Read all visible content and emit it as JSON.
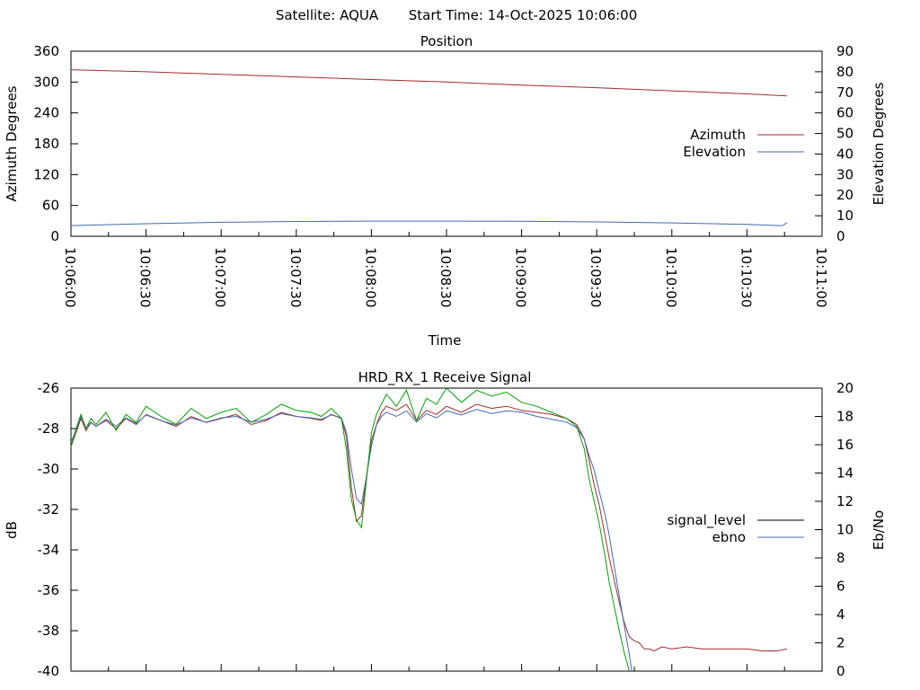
{
  "header": {
    "satellite_label": "Satellite: AQUA",
    "start_time_label": "Start Time: 14-Oct-2025 10:06:00"
  },
  "colors": {
    "azimuth": "#a52a2a",
    "elevation": "#4169b4",
    "signal_level": "#a52a2a",
    "ebno": "#4169b4",
    "signal_green": "#00a000",
    "axis": "#000000"
  },
  "chart_data": [
    {
      "type": "line",
      "title": "Position",
      "xlabel": "Time",
      "ylabel": "Azimuth Degrees",
      "y2label": "Elevation Degrees",
      "x_ticks": [
        "10:06:00",
        "10:06:30",
        "10:07:00",
        "10:07:30",
        "10:08:00",
        "10:08:30",
        "10:09:00",
        "10:09:30",
        "10:10:00",
        "10:10:30",
        "10:11:00"
      ],
      "x_range_seconds": [
        0,
        300
      ],
      "ylim": [
        0,
        360
      ],
      "y_ticks": [
        "0",
        "60",
        "120",
        "180",
        "240",
        "300",
        "360"
      ],
      "y2lim": [
        0,
        90
      ],
      "y2_ticks": [
        "0",
        "10",
        "20",
        "30",
        "40",
        "50",
        "60",
        "70",
        "80",
        "90"
      ],
      "legend_position": "right",
      "series": [
        {
          "name": "Azimuth",
          "axis": "left",
          "x": [
            0,
            30,
            60,
            90,
            120,
            150,
            180,
            210,
            240,
            270,
            286
          ],
          "y": [
            324,
            320,
            315,
            310,
            305,
            300,
            294,
            289,
            283,
            277,
            273
          ]
        },
        {
          "name": "Elevation",
          "axis": "right",
          "x": [
            0,
            30,
            60,
            90,
            120,
            150,
            180,
            210,
            240,
            270,
            284,
            286
          ],
          "y": [
            5.2,
            6.1,
            6.8,
            7.2,
            7.4,
            7.4,
            7.3,
            7.0,
            6.5,
            5.8,
            5.1,
            6.6
          ]
        }
      ]
    },
    {
      "type": "line",
      "title": "HRD_RX_1 Receive Signal",
      "ylabel": "dB",
      "y2label": "Eb/No",
      "x_range_seconds": [
        0,
        300
      ],
      "ylim": [
        -40,
        -26
      ],
      "y_ticks": [
        "-40",
        "-38",
        "-36",
        "-34",
        "-32",
        "-30",
        "-28",
        "-26"
      ],
      "y2lim": [
        0,
        20
      ],
      "y2_ticks": [
        "0",
        "2",
        "4",
        "6",
        "8",
        "10",
        "12",
        "14",
        "16",
        "18",
        "20"
      ],
      "legend_position": "right",
      "series": [
        {
          "name": "signal_level",
          "axis": "left",
          "x": [
            0,
            2,
            4,
            6,
            8,
            10,
            14,
            18,
            22,
            26,
            30,
            36,
            42,
            48,
            54,
            60,
            66,
            72,
            78,
            84,
            90,
            96,
            100,
            104,
            108,
            110,
            112,
            114,
            116,
            118,
            120,
            122,
            124,
            126,
            130,
            134,
            138,
            142,
            146,
            150,
            156,
            162,
            168,
            174,
            180,
            186,
            192,
            198,
            202,
            205,
            207,
            209,
            211,
            213,
            215,
            217,
            219,
            221,
            223,
            225,
            227,
            229,
            231,
            233,
            236,
            240,
            246,
            252,
            258,
            264,
            270,
            276,
            282,
            286
          ],
          "y": [
            -28.9,
            -28.2,
            -27.5,
            -28.1,
            -27.7,
            -27.9,
            -27.6,
            -28.0,
            -27.5,
            -27.8,
            -27.3,
            -27.6,
            -27.9,
            -27.4,
            -27.7,
            -27.5,
            -27.3,
            -27.8,
            -27.6,
            -27.2,
            -27.4,
            -27.5,
            -27.6,
            -27.3,
            -27.5,
            -28.4,
            -30.9,
            -32.6,
            -32.3,
            -30.4,
            -28.6,
            -27.8,
            -27.2,
            -26.9,
            -27.1,
            -26.8,
            -27.6,
            -27.1,
            -27.3,
            -26.9,
            -27.2,
            -26.8,
            -27.0,
            -26.9,
            -27.1,
            -27.2,
            -27.3,
            -27.5,
            -27.8,
            -28.5,
            -29.6,
            -30.8,
            -31.8,
            -33.1,
            -34.4,
            -35.5,
            -36.6,
            -37.6,
            -38.3,
            -38.5,
            -38.6,
            -38.9,
            -38.9,
            -39.0,
            -38.8,
            -38.9,
            -38.8,
            -38.9,
            -38.9,
            -38.9,
            -38.9,
            -39.0,
            -39.0,
            -38.9
          ]
        },
        {
          "name": "ebno",
          "axis": "right",
          "x": [
            0,
            2,
            4,
            6,
            8,
            10,
            14,
            18,
            22,
            26,
            30,
            36,
            42,
            48,
            54,
            60,
            66,
            72,
            78,
            84,
            90,
            96,
            100,
            104,
            108,
            110,
            112,
            114,
            116,
            118,
            120,
            122,
            124,
            126,
            130,
            134,
            138,
            142,
            146,
            150,
            156,
            162,
            168,
            174,
            180,
            186,
            192,
            198,
            202,
            205,
            207,
            209,
            211,
            213,
            215,
            217,
            219,
            221,
            223,
            224
          ],
          "y": [
            16.2,
            17.0,
            18.0,
            17.2,
            17.6,
            17.3,
            17.8,
            17.3,
            17.9,
            17.5,
            18.1,
            17.7,
            17.4,
            17.9,
            17.6,
            17.9,
            18.0,
            17.6,
            17.8,
            18.2,
            18.0,
            17.9,
            17.8,
            18.1,
            17.9,
            16.9,
            14.3,
            12.2,
            11.8,
            13.7,
            15.9,
            17.4,
            18.0,
            18.3,
            18.0,
            18.4,
            17.6,
            18.2,
            17.9,
            18.4,
            18.1,
            18.5,
            18.2,
            18.4,
            18.3,
            18.0,
            17.8,
            17.6,
            17.2,
            16.4,
            15.2,
            14.2,
            12.7,
            11.3,
            9.6,
            7.4,
            5.3,
            3.2,
            1.2,
            0.0
          ]
        },
        {
          "axis": "left",
          "x": [
            0,
            2,
            4,
            6,
            8,
            10,
            14,
            18,
            22,
            26,
            30,
            36,
            42,
            48,
            54,
            60,
            66,
            72,
            78,
            84,
            90,
            96,
            100,
            104,
            108,
            110,
            112,
            114,
            116,
            118,
            120,
            122,
            124,
            126,
            130,
            134,
            138,
            142,
            146,
            150,
            156,
            162,
            168,
            174,
            180,
            186,
            192,
            198,
            202,
            205,
            207,
            209,
            211,
            213,
            215,
            217,
            219,
            221,
            223
          ],
          "y": [
            -28.9,
            -28.0,
            -27.3,
            -28.0,
            -27.5,
            -27.8,
            -27.2,
            -28.1,
            -27.3,
            -27.7,
            -26.9,
            -27.4,
            -27.8,
            -27.0,
            -27.5,
            -27.2,
            -27.0,
            -27.7,
            -27.3,
            -26.8,
            -27.1,
            -27.2,
            -27.4,
            -27.0,
            -27.5,
            -29.0,
            -31.5,
            -32.5,
            -32.9,
            -30.6,
            -28.2,
            -27.3,
            -26.8,
            -26.3,
            -26.9,
            -26.1,
            -27.6,
            -26.5,
            -26.8,
            -26.0,
            -26.7,
            -26.1,
            -26.4,
            -26.2,
            -26.7,
            -26.9,
            -27.2,
            -27.5,
            -27.9,
            -29.0,
            -30.5,
            -31.6,
            -32.7,
            -34.1,
            -35.6,
            -36.8,
            -38.0,
            -39.1,
            -40.0
          ]
        }
      ]
    }
  ]
}
